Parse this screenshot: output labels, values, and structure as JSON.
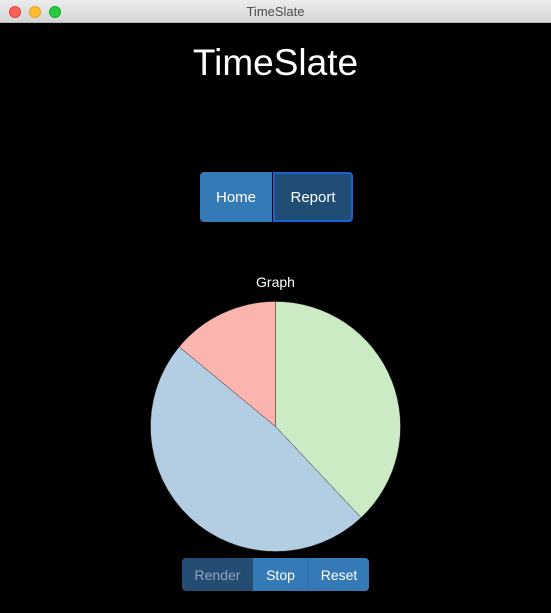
{
  "window": {
    "title": "TimeSlate"
  },
  "app": {
    "title": "TimeSlate"
  },
  "nav": {
    "home_label": "Home",
    "report_label": "Report",
    "active": "Report"
  },
  "graph": {
    "label": "Graph"
  },
  "chart_data": {
    "type": "pie",
    "values": [
      38,
      48,
      14
    ],
    "colors": [
      "#ccebc5",
      "#b3cde3",
      "#fbb4ae"
    ],
    "start_angle_deg": 0,
    "direction": "clockwise",
    "stroke": "#333333"
  },
  "controls": {
    "render_label": "Render",
    "stop_label": "Stop",
    "reset_label": "Reset",
    "render_disabled": true
  }
}
